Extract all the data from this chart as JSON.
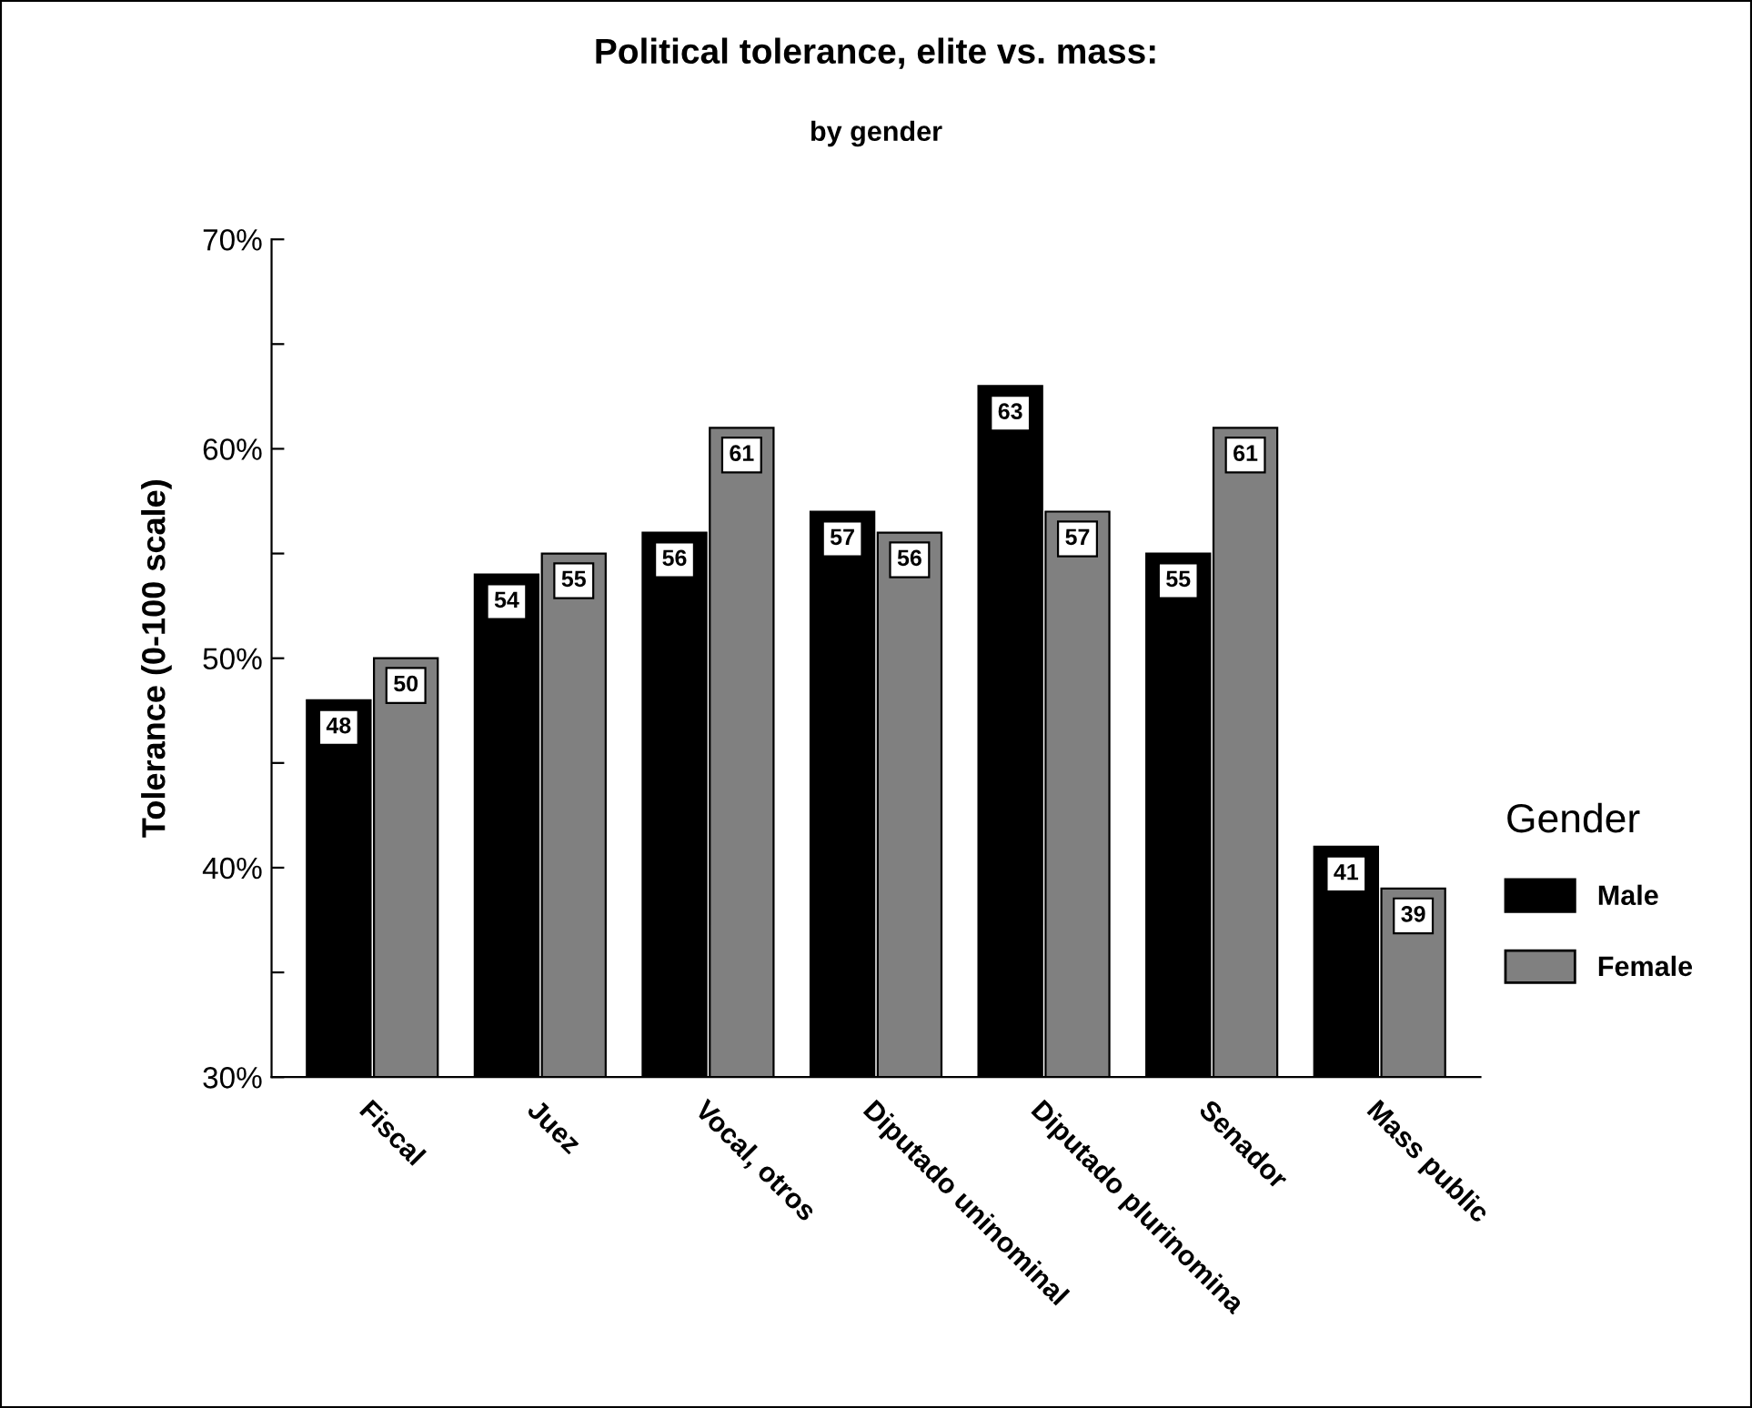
{
  "chart_data": {
    "type": "bar",
    "title": "Political tolerance, elite vs. mass:",
    "subtitle": "by gender",
    "ylabel": "Tolerance (0-100 scale)",
    "legend_title": "Gender",
    "categories": [
      "Fiscal",
      "Juez",
      "Vocal, otros",
      "Diputado uninominal",
      "Diputado plurinomina",
      "Senador",
      "Mass public"
    ],
    "series": [
      {
        "name": "Male",
        "color": "#000000",
        "values": [
          48,
          54,
          56,
          57,
          63,
          55,
          41
        ]
      },
      {
        "name": "Female",
        "color": "#808080",
        "values": [
          50,
          55,
          61,
          56,
          57,
          61,
          39
        ]
      }
    ],
    "ylim": [
      30,
      70
    ],
    "yticks": [
      {
        "value": 30,
        "label": "30%"
      },
      {
        "value": 35,
        "label": null
      },
      {
        "value": 40,
        "label": "40%"
      },
      {
        "value": 45,
        "label": null
      },
      {
        "value": 50,
        "label": "50%"
      },
      {
        "value": 55,
        "label": null
      },
      {
        "value": 60,
        "label": "60%"
      },
      {
        "value": 65,
        "label": null
      },
      {
        "value": 70,
        "label": "70%"
      }
    ],
    "data_labels": true,
    "grid": false,
    "legend": "right"
  }
}
